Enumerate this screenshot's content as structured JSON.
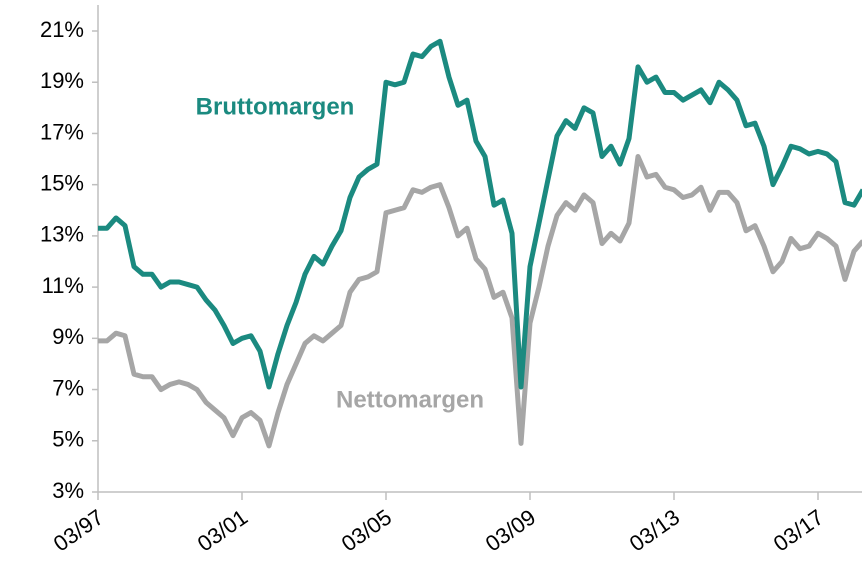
{
  "chart_data": {
    "type": "line",
    "categories": [
      "03/97",
      null,
      null,
      null,
      null,
      null,
      null,
      null,
      null,
      null,
      null,
      null,
      null,
      null,
      null,
      null,
      "03/01",
      null,
      null,
      null,
      null,
      null,
      null,
      null,
      null,
      null,
      null,
      null,
      null,
      null,
      null,
      null,
      "03/05",
      null,
      null,
      null,
      null,
      null,
      null,
      null,
      null,
      null,
      null,
      null,
      null,
      null,
      null,
      null,
      "03/09",
      null,
      null,
      null,
      null,
      null,
      null,
      null,
      null,
      null,
      null,
      null,
      null,
      null,
      null,
      null,
      "03/13",
      null,
      null,
      null,
      null,
      null,
      null,
      null,
      null,
      null,
      null,
      null,
      null,
      null,
      null,
      null,
      "03/17",
      null,
      null,
      null,
      null,
      null
    ],
    "series": [
      {
        "name": "Bruttomargen",
        "color": "#1b8a80",
        "values": [
          13.3,
          13.3,
          13.7,
          13.4,
          11.8,
          11.5,
          11.5,
          11.0,
          11.2,
          11.2,
          11.1,
          11.0,
          10.5,
          10.1,
          9.5,
          8.8,
          9.0,
          9.1,
          8.5,
          7.1,
          8.4,
          9.5,
          10.4,
          11.5,
          12.2,
          11.9,
          12.6,
          13.2,
          14.5,
          15.3,
          15.6,
          15.8,
          19.0,
          18.9,
          19.0,
          20.1,
          20.0,
          20.4,
          20.6,
          19.2,
          18.1,
          18.3,
          16.7,
          16.1,
          14.2,
          14.4,
          13.1,
          7.1,
          11.8,
          13.5,
          15.2,
          16.9,
          17.5,
          17.2,
          18.0,
          17.8,
          16.1,
          16.5,
          15.8,
          16.8,
          19.6,
          19.0,
          19.2,
          18.6,
          18.6,
          18.3,
          18.5,
          18.7,
          18.2,
          19.0,
          18.7,
          18.3,
          17.3,
          17.4,
          16.5,
          15.0,
          15.7,
          16.5,
          16.4,
          16.2,
          16.3,
          16.2,
          15.9,
          14.3,
          14.2,
          14.8
        ]
      },
      {
        "name": "Nettomargen",
        "color": "#a6a6a6",
        "values": [
          8.9,
          8.9,
          9.2,
          9.1,
          7.6,
          7.5,
          7.5,
          7.0,
          7.2,
          7.3,
          7.2,
          7.0,
          6.5,
          6.2,
          5.9,
          5.2,
          5.9,
          6.1,
          5.8,
          4.8,
          6.1,
          7.2,
          8.0,
          8.8,
          9.1,
          8.9,
          9.2,
          9.5,
          10.8,
          11.3,
          11.4,
          11.6,
          13.9,
          14.0,
          14.1,
          14.8,
          14.7,
          14.9,
          15.0,
          14.1,
          13.0,
          13.3,
          12.1,
          11.7,
          10.6,
          10.8,
          9.8,
          4.9,
          9.6,
          11.0,
          12.6,
          13.8,
          14.3,
          14.0,
          14.6,
          14.3,
          12.7,
          13.1,
          12.8,
          13.5,
          16.1,
          15.3,
          15.4,
          14.9,
          14.8,
          14.5,
          14.6,
          14.9,
          14.0,
          14.7,
          14.7,
          14.3,
          13.2,
          13.4,
          12.6,
          11.6,
          12.0,
          12.9,
          12.5,
          12.6,
          13.1,
          12.9,
          12.6,
          11.3,
          12.4,
          12.8
        ]
      }
    ],
    "ylim": [
      3,
      21
    ],
    "yticks": [
      {
        "value": 3,
        "label": "3%"
      },
      {
        "value": 5,
        "label": "5%"
      },
      {
        "value": 7,
        "label": "7%"
      },
      {
        "value": 9,
        "label": "9%"
      },
      {
        "value": 11,
        "label": "11%"
      },
      {
        "value": 13,
        "label": "13%"
      },
      {
        "value": 15,
        "label": "15%"
      },
      {
        "value": 17,
        "label": "17%"
      },
      {
        "value": 19,
        "label": "19%"
      },
      {
        "value": 21,
        "label": "21%"
      }
    ],
    "grid": false
  }
}
